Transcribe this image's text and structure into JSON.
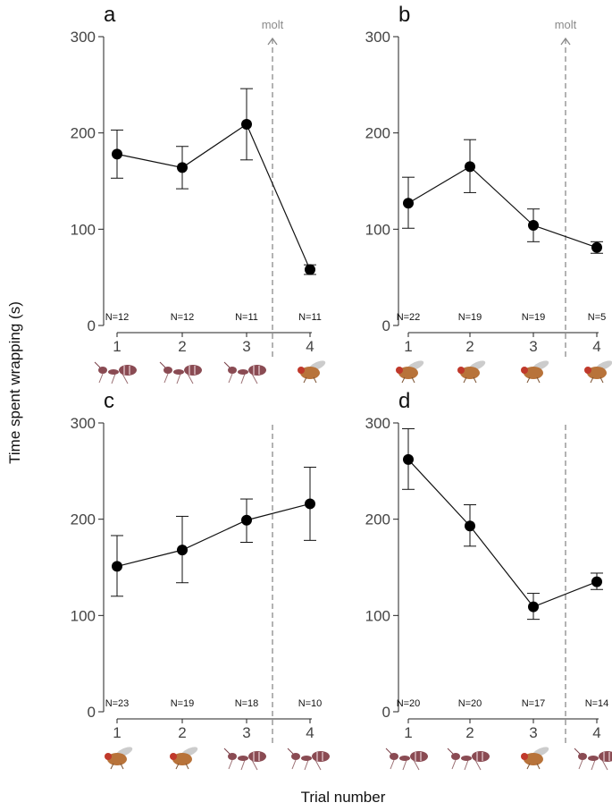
{
  "figure": {
    "ylabel": "Time spent wrapping (s)",
    "xlabel": "Trial number",
    "molt_label": "molt"
  },
  "chart_data": [
    {
      "type": "line",
      "panel": "a",
      "x": [
        "1",
        "2",
        "3",
        "4"
      ],
      "values": [
        178,
        164,
        209,
        58
      ],
      "err_low": [
        153,
        142,
        172,
        53
      ],
      "err_high": [
        203,
        186,
        246,
        63
      ],
      "n_labels": [
        "N=12",
        "N=12",
        "N=11",
        "N=11"
      ],
      "prey": [
        "ant",
        "ant",
        "ant",
        "fly"
      ],
      "ylim": [
        0,
        300
      ],
      "yticks": [
        "0",
        "100",
        "200",
        "300"
      ],
      "molt": true
    },
    {
      "type": "line",
      "panel": "b",
      "x": [
        "1",
        "2",
        "3",
        "4"
      ],
      "values": [
        127,
        165,
        104,
        81
      ],
      "err_low": [
        101,
        138,
        87,
        75
      ],
      "err_high": [
        154,
        193,
        121,
        87
      ],
      "n_labels": [
        "N=22",
        "N=19",
        "N=19",
        "N=5"
      ],
      "prey": [
        "fly",
        "fly",
        "fly",
        "fly"
      ],
      "ylim": [
        0,
        300
      ],
      "yticks": [
        "0",
        "100",
        "200",
        "300"
      ],
      "molt": true
    },
    {
      "type": "line",
      "panel": "c",
      "x": [
        "1",
        "2",
        "3",
        "4"
      ],
      "values": [
        151,
        168,
        199,
        216
      ],
      "err_low": [
        120,
        134,
        176,
        178
      ],
      "err_high": [
        183,
        203,
        221,
        254
      ],
      "n_labels": [
        "N=23",
        "N=19",
        "N=18",
        "N=10"
      ],
      "prey": [
        "fly",
        "fly",
        "ant",
        "ant"
      ],
      "ylim": [
        0,
        300
      ],
      "yticks": [
        "0",
        "100",
        "200",
        "300"
      ],
      "molt": false
    },
    {
      "type": "line",
      "panel": "d",
      "x": [
        "1",
        "2",
        "3",
        "4"
      ],
      "values": [
        262,
        193,
        109,
        135
      ],
      "err_low": [
        231,
        172,
        96,
        127
      ],
      "err_high": [
        294,
        215,
        123,
        144
      ],
      "n_labels": [
        "N=20",
        "N=20",
        "N=17",
        "N=14"
      ],
      "prey": [
        "ant",
        "ant",
        "fly",
        "ant"
      ],
      "ylim": [
        0,
        300
      ],
      "yticks": [
        "0",
        "100",
        "200",
        "300"
      ],
      "molt": false
    }
  ]
}
